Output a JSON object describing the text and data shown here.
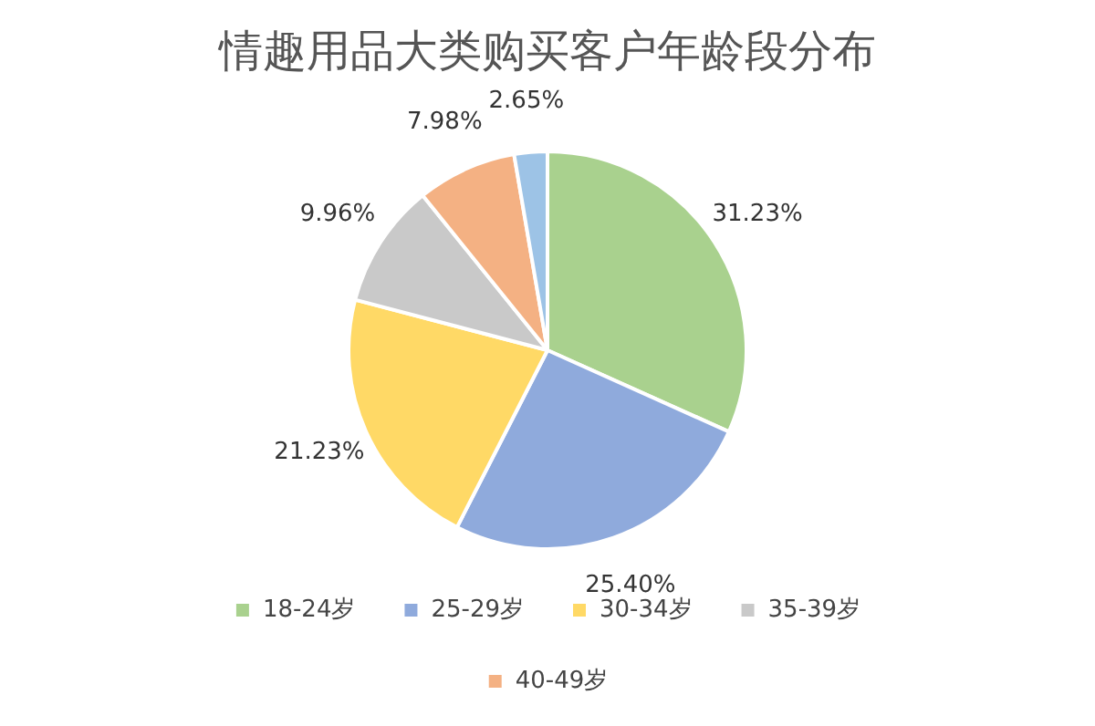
{
  "chart_data": {
    "type": "pie",
    "title": "情趣用品大类购买客户年龄段分布",
    "categories": [
      "18-24岁",
      "25-29岁",
      "30-34岁",
      "35-39岁",
      "40-49岁",
      null
    ],
    "values": [
      31.23,
      25.4,
      21.23,
      9.96,
      7.98,
      2.65
    ],
    "value_labels": [
      "31.23%",
      "25.40%",
      "21.23%",
      "9.96%",
      "7.98%",
      "2.65%"
    ],
    "colors": [
      "#a9d18e",
      "#8faadc",
      "#ffd966",
      "#c9c9c9",
      "#f4b183",
      "#9dc3e6"
    ],
    "legend": "bottom"
  }
}
